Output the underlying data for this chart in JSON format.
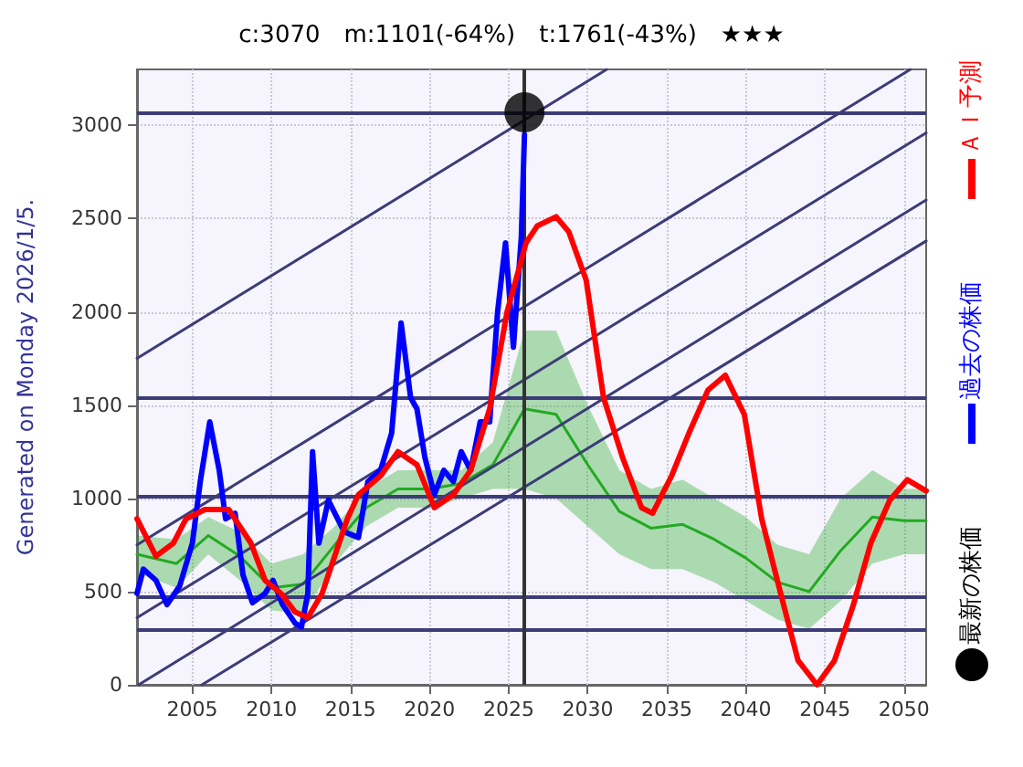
{
  "chart_data": {
    "type": "line",
    "title": "c:3070　m:1101(-64%)　t:1761(-43%)　★★★",
    "annotations": [
      "Generated on Monday 2026/1/5."
    ],
    "xlim": [
      2001.5,
      2051.4
    ],
    "xticks": [
      2005,
      2010,
      2015,
      2020,
      2025,
      2030,
      2035,
      2040,
      2045,
      2050
    ],
    "ylim": [
      0,
      3300
    ],
    "yticks": [
      0,
      500,
      1000,
      1500,
      2000,
      2500,
      3000
    ],
    "grid": true,
    "legend": "right",
    "series": [
      {
        "name": "最新の株価",
        "type": "scatter",
        "marker": "circle",
        "color": "#000000",
        "x": [
          2026.0
        ],
        "values": [
          3070
        ]
      },
      {
        "name": "過去の株価",
        "color": "#0000ff",
        "marker": "none",
        "x": [
          2001.5,
          2001.9,
          2002.7,
          2003.4,
          2004.2,
          2005.0,
          2005.5,
          2006.1,
          2006.7,
          2007.1,
          2007.7,
          2008.2,
          2008.8,
          2009.6,
          2010.1,
          2010.7,
          2011.5,
          2011.9,
          2012.3,
          2012.6,
          2013.0,
          2013.6,
          2014.6,
          2015.5,
          2016.1,
          2016.9,
          2017.6,
          2018.2,
          2018.8,
          2019.2,
          2019.7,
          2020.3,
          2020.9,
          2021.5,
          2022.0,
          2022.6,
          2023.2,
          2023.8,
          2024.3,
          2024.8,
          2025.3,
          2025.8,
          2026.0
        ],
        "values": [
          490,
          620,
          560,
          430,
          530,
          760,
          1090,
          1410,
          1150,
          890,
          920,
          590,
          440,
          490,
          560,
          430,
          330,
          310,
          490,
          1250,
          760,
          990,
          820,
          790,
          1090,
          1150,
          1350,
          1940,
          1540,
          1480,
          1220,
          1020,
          1150,
          1090,
          1250,
          1150,
          1410,
          1410,
          2000,
          2370,
          1810,
          2400,
          2950
        ]
      },
      {
        "name": "ＡＩ予測",
        "color": "#ff0000",
        "marker": "none",
        "x": [
          2001.5,
          2002.7,
          2003.8,
          2004.6,
          2005.8,
          2007.3,
          2008.7,
          2009.6,
          2010.6,
          2011.5,
          2012.3,
          2013.2,
          2014.0,
          2014.8,
          2015.5,
          2016.9,
          2018.0,
          2019.2,
          2020.3,
          2021.5,
          2022.6,
          2023.8,
          2024.9,
          2026.1,
          2026.8,
          2028.0,
          2028.8,
          2029.9,
          2031.0,
          2032.2,
          2033.4,
          2034.1,
          2035.3,
          2036.4,
          2037.6,
          2038.7,
          2039.9,
          2041.0,
          2042.2,
          2043.3,
          2044.5,
          2045.6,
          2046.8,
          2047.9,
          2049.1,
          2050.2,
          2051.4
        ],
        "values": [
          890,
          690,
          760,
          890,
          940,
          940,
          760,
          560,
          490,
          390,
          360,
          490,
          690,
          890,
          1020,
          1120,
          1250,
          1180,
          950,
          1020,
          1150,
          1480,
          2000,
          2370,
          2460,
          2510,
          2430,
          2170,
          1540,
          1220,
          950,
          920,
          1120,
          1350,
          1580,
          1660,
          1450,
          890,
          490,
          130,
          0,
          130,
          430,
          760,
          990,
          1100,
          1040
        ]
      },
      {
        "color": "#22aa22",
        "marker": "none",
        "x": [
          2001.5,
          2004,
          2006,
          2008,
          2010,
          2012,
          2014,
          2016,
          2018,
          2020,
          2022,
          2024,
          2026,
          2028,
          2030,
          2032,
          2034,
          2036,
          2038,
          2040,
          2042,
          2044,
          2046,
          2048,
          2050,
          2051.4
        ],
        "values": [
          700,
          650,
          800,
          690,
          520,
          540,
          750,
          950,
          1050,
          1050,
          1080,
          1180,
          1480,
          1450,
          1180,
          930,
          840,
          860,
          780,
          680,
          550,
          500,
          720,
          900,
          880,
          880
        ],
        "lower": [
          600,
          520,
          700,
          560,
          400,
          380,
          650,
          850,
          950,
          950,
          1000,
          1050,
          1050,
          1000,
          850,
          700,
          620,
          620,
          550,
          450,
          350,
          300,
          450,
          650,
          700,
          700
        ],
        "upper": [
          800,
          780,
          900,
          820,
          650,
          700,
          850,
          1050,
          1150,
          1150,
          1150,
          1300,
          1900,
          1900,
          1500,
          1150,
          1050,
          1100,
          1000,
          900,
          750,
          700,
          1000,
          1150,
          1050,
          1050
        ]
      },
      {
        "color": "#3c3c78",
        "marker": "none",
        "x": [
          2001.5,
          2031.2
        ],
        "values": [
          1750,
          3300
        ]
      },
      {
        "color": "#3c3c78",
        "marker": "none",
        "x": [
          2001.5,
          2050.4
        ],
        "values": [
          750,
          3300
        ]
      },
      {
        "color": "#3c3c78",
        "marker": "none",
        "x": [
          2001.5,
          2051.4
        ],
        "values": [
          360,
          2960
        ]
      },
      {
        "color": "#3c3c78",
        "marker": "none",
        "x": [
          2001.6,
          2051.4
        ],
        "values": [
          0,
          2600
        ]
      },
      {
        "color": "#3c3c78",
        "marker": "none",
        "x": [
          2005.6,
          2051.4
        ],
        "values": [
          0,
          2380
        ]
      }
    ],
    "ref_lines": [
      {
        "axis": "y",
        "value": 3070,
        "color": "#3c3c78"
      },
      {
        "axis": "y",
        "value": 1540,
        "color": "#3c3c78"
      },
      {
        "axis": "y",
        "value": 1010,
        "color": "#3c3c78"
      },
      {
        "axis": "y",
        "value": 475,
        "color": "#3c3c78"
      },
      {
        "axis": "y",
        "value": 300,
        "color": "#3c3c78"
      },
      {
        "axis": "x",
        "value": 2026,
        "color": "#333333"
      }
    ]
  }
}
